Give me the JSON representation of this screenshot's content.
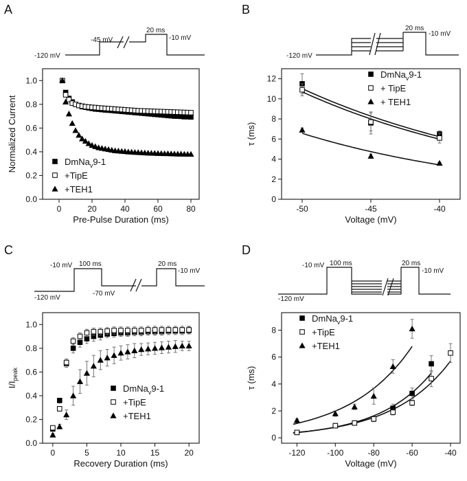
{
  "panels": [
    {
      "letter": "A",
      "protocol": [
        "-120 mV",
        "-45 mV",
        "20 ms",
        "-10 mV"
      ],
      "chart_data": {
        "type": "scatter",
        "xlabel": "Pre-Pulse Duration (ms)",
        "ylabel": "Normalized Current",
        "xlim": [
          -10,
          85
        ],
        "ylim": [
          0,
          1.1
        ],
        "xticks": [
          0,
          20,
          40,
          60,
          80
        ],
        "yticks": [
          0.0,
          0.2,
          0.4,
          0.6,
          0.8,
          1.0
        ],
        "legend": "bottom-left",
        "series": [
          {
            "name": "DmNav9-1",
            "marker": "square-filled",
            "x": [
              2,
              4,
              6,
              8,
              10,
              12,
              14,
              16,
              18,
              20,
              22,
              24,
              26,
              28,
              30,
              32,
              34,
              36,
              38,
              40,
              42,
              44,
              46,
              48,
              50,
              52,
              54,
              56,
              58,
              60,
              62,
              64,
              66,
              68,
              70,
              72,
              74,
              76,
              78,
              80
            ],
            "y": [
              1.0,
              0.9,
              0.85,
              0.82,
              0.8,
              0.79,
              0.78,
              0.775,
              0.77,
              0.765,
              0.76,
              0.758,
              0.755,
              0.752,
              0.75,
              0.748,
              0.745,
              0.743,
              0.74,
              0.738,
              0.735,
              0.733,
              0.73,
              0.728,
              0.725,
              0.723,
              0.72,
              0.718,
              0.715,
              0.713,
              0.71,
              0.708,
              0.705,
              0.703,
              0.7,
              0.7,
              0.698,
              0.695,
              0.695,
              0.693
            ]
          },
          {
            "name": "+TipE",
            "marker": "square-open",
            "x": [
              2,
              4,
              6,
              8,
              10,
              12,
              14,
              16,
              18,
              20,
              22,
              24,
              26,
              28,
              30,
              32,
              34,
              36,
              38,
              40,
              42,
              44,
              46,
              48,
              50,
              52,
              54,
              56,
              58,
              60,
              62,
              64,
              66,
              68,
              70,
              72,
              74,
              76,
              78,
              80
            ],
            "y": [
              1.0,
              0.88,
              0.84,
              0.81,
              0.8,
              0.79,
              0.785,
              0.78,
              0.778,
              0.775,
              0.773,
              0.77,
              0.768,
              0.766,
              0.764,
              0.762,
              0.76,
              0.758,
              0.756,
              0.754,
              0.752,
              0.75,
              0.748,
              0.746,
              0.745,
              0.744,
              0.743,
              0.742,
              0.741,
              0.74,
              0.739,
              0.738,
              0.737,
              0.736,
              0.735,
              0.734,
              0.733,
              0.732,
              0.731,
              0.73
            ]
          },
          {
            "name": "+TEH1",
            "marker": "triangle-filled",
            "x": [
              2,
              4,
              6,
              8,
              10,
              12,
              14,
              16,
              18,
              20,
              22,
              24,
              26,
              28,
              30,
              32,
              34,
              36,
              38,
              40,
              42,
              44,
              46,
              48,
              50,
              52,
              54,
              56,
              58,
              60,
              62,
              64,
              66,
              68,
              70,
              72,
              74,
              76,
              78,
              80
            ],
            "y": [
              1.0,
              0.82,
              0.72,
              0.64,
              0.58,
              0.54,
              0.51,
              0.49,
              0.47,
              0.455,
              0.445,
              0.435,
              0.43,
              0.425,
              0.42,
              0.415,
              0.41,
              0.408,
              0.405,
              0.403,
              0.4,
              0.398,
              0.396,
              0.395,
              0.393,
              0.392,
              0.39,
              0.389,
              0.388,
              0.387,
              0.386,
              0.385,
              0.385,
              0.384,
              0.383,
              0.382,
              0.382,
              0.381,
              0.38,
              0.38
            ]
          }
        ]
      }
    },
    {
      "letter": "B",
      "protocol": [
        "-120 mV",
        "20 ms",
        "-10 mV"
      ],
      "chart_data": {
        "type": "scatter",
        "xlabel": "Voltage (mV)",
        "ylabel": "τ (ms)",
        "xlim": [
          -51.5,
          -38.5
        ],
        "ylim": [
          0,
          13
        ],
        "xticks": [
          -50,
          -45,
          -40
        ],
        "yticks": [
          0,
          2,
          4,
          6,
          8,
          10,
          12
        ],
        "legend": "top-right",
        "series": [
          {
            "name": "DmNav9-1",
            "marker": "square-filled",
            "x": [
              -50,
              -45,
              -40
            ],
            "y": [
              11.5,
              7.6,
              6.5
            ],
            "err": [
              1.0,
              1.1,
              0.3
            ]
          },
          {
            "name": "+ TipE",
            "marker": "square-open",
            "x": [
              -50,
              -45,
              -40
            ],
            "y": [
              10.9,
              7.7,
              6.1
            ],
            "err": [
              0.6,
              0.9,
              0.5
            ]
          },
          {
            "name": "+ TEH1",
            "marker": "triangle-filled",
            "x": [
              -50,
              -45,
              -40
            ],
            "y": [
              6.9,
              4.3,
              3.6
            ],
            "err": [
              0.2,
              0.2,
              0.1
            ]
          }
        ]
      }
    },
    {
      "letter": "C",
      "protocol": [
        "-120 mV",
        "-10 mV",
        "100 ms",
        "-70 mV",
        "20 ms",
        "-10 mV"
      ],
      "chart_data": {
        "type": "scatter",
        "xlabel": "Recovery Duration (ms)",
        "ylabel": "I/Ipeak",
        "xlim": [
          -1.5,
          21.5
        ],
        "ylim": [
          0,
          1.1
        ],
        "xticks": [
          0,
          5,
          10,
          15,
          20
        ],
        "yticks": [
          0.0,
          0.2,
          0.4,
          0.6,
          0.8,
          1.0
        ],
        "legend": "bottom-right",
        "series": [
          {
            "name": "DmNav9-1",
            "marker": "square-filled",
            "x": [
              0,
              1,
              2,
              3,
              4,
              5,
              6,
              7,
              8,
              9,
              10,
              11,
              12,
              13,
              14,
              15,
              16,
              17,
              18,
              19,
              20
            ],
            "y": [
              0.12,
              0.36,
              0.67,
              0.8,
              0.85,
              0.88,
              0.9,
              0.91,
              0.92,
              0.925,
              0.93,
              0.93,
              0.935,
              0.935,
              0.94,
              0.94,
              0.94,
              0.945,
              0.945,
              0.945,
              0.95
            ],
            "err": [
              0.01,
              0.02,
              0.03,
              0.04,
              0.04,
              0.04,
              0.04,
              0.04,
              0.03,
              0.03,
              0.03,
              0.03,
              0.03,
              0.03,
              0.03,
              0.03,
              0.03,
              0.03,
              0.03,
              0.03,
              0.03
            ]
          },
          {
            "name": "+TipE",
            "marker": "square-open",
            "x": [
              0,
              1,
              2,
              3,
              4,
              5,
              6,
              7,
              8,
              9,
              10,
              11,
              12,
              13,
              14,
              15,
              16,
              17,
              18,
              19,
              20
            ],
            "y": [
              0.13,
              0.29,
              0.68,
              0.86,
              0.9,
              0.93,
              0.94,
              0.94,
              0.945,
              0.95,
              0.95,
              0.95,
              0.95,
              0.95,
              0.955,
              0.955,
              0.955,
              0.955,
              0.955,
              0.955,
              0.955
            ],
            "err": [
              0.01,
              0.02,
              0.03,
              0.03,
              0.03,
              0.03,
              0.03,
              0.03,
              0.03,
              0.03,
              0.03,
              0.03,
              0.03,
              0.03,
              0.03,
              0.03,
              0.03,
              0.03,
              0.03,
              0.03,
              0.03
            ]
          },
          {
            "name": "+TEH1",
            "marker": "triangle-filled",
            "x": [
              0,
              1,
              2,
              3,
              4,
              5,
              6,
              7,
              8,
              9,
              10,
              11,
              12,
              13,
              14,
              15,
              16,
              17,
              18,
              19,
              20
            ],
            "y": [
              0.07,
              0.14,
              0.24,
              0.4,
              0.52,
              0.59,
              0.65,
              0.7,
              0.72,
              0.74,
              0.76,
              0.77,
              0.78,
              0.79,
              0.795,
              0.8,
              0.805,
              0.81,
              0.815,
              0.82,
              0.82
            ],
            "err": [
              0.01,
              0.02,
              0.04,
              0.08,
              0.1,
              0.1,
              0.09,
              0.08,
              0.07,
              0.07,
              0.06,
              0.06,
              0.06,
              0.05,
              0.05,
              0.05,
              0.05,
              0.05,
              0.05,
              0.04,
              0.04
            ]
          }
        ]
      }
    },
    {
      "letter": "D",
      "protocol": [
        "-10 mV",
        "100 ms",
        "20 ms",
        "-10 mV",
        "-120 mV"
      ],
      "chart_data": {
        "type": "scatter",
        "xlabel": "Voltage (mV)",
        "ylabel": "τ (ms)",
        "xlim": [
          -128,
          -35
        ],
        "ylim": [
          -0.4,
          9.3
        ],
        "xticks": [
          -120,
          -100,
          -80,
          -60,
          -40
        ],
        "yticks": [
          0,
          2,
          4,
          6,
          8
        ],
        "legend": "top-left",
        "series": [
          {
            "name": "DmNav9-1",
            "marker": "square-filled",
            "x": [
              -120,
              -100,
              -90,
              -80,
              -70,
              -60,
              -50
            ],
            "y": [
              0.4,
              0.9,
              1.1,
              1.4,
              2.2,
              3.3,
              5.5
            ],
            "err": [
              0.1,
              0.1,
              0.1,
              0.2,
              0.3,
              0.4,
              0.6
            ]
          },
          {
            "name": "+TipE",
            "marker": "square-open",
            "x": [
              -120,
              -100,
              -90,
              -80,
              -70,
              -60,
              -50,
              -40
            ],
            "y": [
              0.4,
              0.9,
              1.1,
              1.4,
              1.9,
              2.6,
              4.4,
              6.3
            ],
            "err": [
              0.1,
              0.1,
              0.1,
              0.1,
              0.2,
              0.2,
              0.6,
              0.7
            ]
          },
          {
            "name": "+TEH1",
            "marker": "triangle-filled",
            "x": [
              -120,
              -100,
              -90,
              -80,
              -70,
              -60
            ],
            "y": [
              1.3,
              1.8,
              2.3,
              3.1,
              5.3,
              8.1
            ],
            "err": [
              0.1,
              0.2,
              0.2,
              0.6,
              0.5,
              0.7
            ]
          }
        ]
      }
    }
  ]
}
